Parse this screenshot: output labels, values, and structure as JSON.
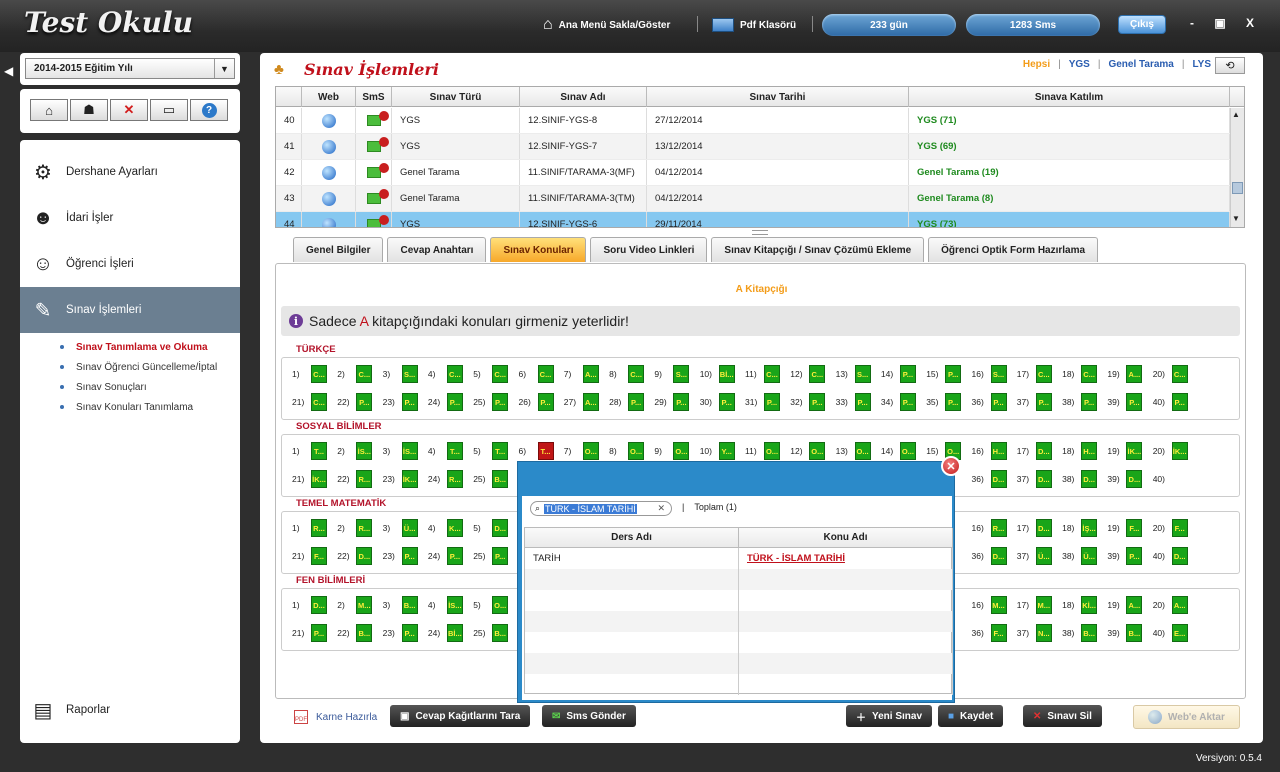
{
  "app": {
    "title": "Test Okulu"
  },
  "topbar": {
    "menu_toggle": "Ana Menü Sakla/Göster",
    "pdf": "Pdf Klasörü",
    "days": "233 gün",
    "sms": "1283 Sms",
    "logout": "Çıkış",
    "minimize": "-",
    "maximize": "▣",
    "close": "X"
  },
  "sidebar": {
    "year": "2014-2015 Eğitim Yılı",
    "menu": [
      {
        "label": "Dershane Ayarları"
      },
      {
        "label": "İdari İşler"
      },
      {
        "label": "Öğrenci İşleri"
      },
      {
        "label": "Sınav İşlemleri"
      }
    ],
    "submenu": [
      {
        "label": "Sınav Tanımlama ve Okuma"
      },
      {
        "label": "Sınav Öğrenci Güncelleme/İptal"
      },
      {
        "label": "Sınav Sonuçları"
      },
      {
        "label": "Sınav Konuları Tanımlama"
      }
    ],
    "reports": "Raporlar"
  },
  "main": {
    "title": "Sınav İşlemleri",
    "filters": [
      "Hepsi",
      "YGS",
      "Genel Tarama",
      "LYS"
    ],
    "grid": {
      "columns": [
        "Web",
        "SmS",
        "Sınav Türü",
        "Sınav Adı",
        "Sınav Tarihi",
        "Sınava Katılım"
      ],
      "rows": [
        {
          "no": "40",
          "type": "YGS",
          "name": "12.SINIF-YGS-8",
          "date": "27/12/2014",
          "participation": "YGS (71)"
        },
        {
          "no": "41",
          "type": "YGS",
          "name": "12.SINIF-YGS-7",
          "date": "13/12/2014",
          "participation": "YGS (69)"
        },
        {
          "no": "42",
          "type": "Genel Tarama",
          "name": "11.SINIF/TARAMA-3(MF)",
          "date": "04/12/2014",
          "participation": "Genel Tarama (19)"
        },
        {
          "no": "43",
          "type": "Genel Tarama",
          "name": "11.SINIF/TARAMA-3(TM)",
          "date": "04/12/2014",
          "participation": "Genel Tarama (8)"
        },
        {
          "no": "44",
          "type": "YGS",
          "name": "12.SINIF-YGS-6",
          "date": "29/11/2014",
          "participation": "YGS (73)"
        }
      ]
    },
    "tabs": [
      "Genel Bilgiler",
      "Cevap Anahtarı",
      "Sınav Konuları",
      "Soru Video Linkleri",
      "Sınav Kitapçığı / Sınav Çözümü Ekleme",
      "Öğrenci Optik Form Hazırlama"
    ],
    "booklet": "A Kitapçığı",
    "info": {
      "pre": "Sadece ",
      "letter": "A",
      "post": " kitapçığındaki konuları girmeniz yeterlidir!"
    },
    "sections": [
      {
        "title": "TÜRKÇE",
        "answers": [
          "C...",
          "C...",
          "S...",
          "C...",
          "C...",
          "C...",
          "A...",
          "C...",
          "S...",
          "Bİ...",
          "C...",
          "C...",
          "S...",
          "P...",
          "P...",
          "S...",
          "C...",
          "C...",
          "A...",
          "C...",
          "C...",
          "P...",
          "P...",
          "P...",
          "P...",
          "P...",
          "A...",
          "P...",
          "P...",
          "P...",
          "P...",
          "P...",
          "P...",
          "P...",
          "P...",
          "P...",
          "P...",
          "P...",
          "P...",
          "P..."
        ]
      },
      {
        "title": "SOSYAL BİLİMLER",
        "answers": [
          "T...",
          "İS...",
          "İS...",
          "T...",
          "T...",
          "T...",
          "O...",
          "O...",
          "O...",
          "Y...",
          "O...",
          "O...",
          "O...",
          "O...",
          "O...",
          "H...",
          "D...",
          "H...",
          "İK...",
          "İK...",
          "İK...",
          "R...",
          "İK...",
          "R...",
          "B...",
          "",
          "",
          "",
          "",
          "",
          "",
          "",
          "",
          "",
          "",
          "D...",
          "D...",
          "D...",
          "D...",
          ""
        ]
      },
      {
        "title": "TEMEL MATEMATİK",
        "answers": [
          "R...",
          "R...",
          "Ü...",
          "K...",
          "D...",
          "",
          "",
          "",
          "",
          "",
          "",
          "",
          "",
          "",
          "",
          "R...",
          "D...",
          "İŞ...",
          "F...",
          "F...",
          "F...",
          "D...",
          "P...",
          "P...",
          "P...",
          "",
          "",
          "",
          "",
          "",
          "",
          "",
          "",
          "",
          "",
          "D...",
          "Ü...",
          "Ü...",
          "P...",
          "D..."
        ]
      },
      {
        "title": "FEN BİLİMLERİ",
        "answers": [
          "D...",
          "M...",
          "B...",
          "İS...",
          "O...",
          "",
          "",
          "",
          "",
          "",
          "",
          "",
          "",
          "",
          "",
          "M...",
          "M...",
          "Kİ...",
          "A...",
          "A...",
          "P...",
          "B...",
          "P...",
          "Bİ...",
          "B...",
          "",
          "",
          "",
          "",
          "",
          "",
          "",
          "",
          "",
          "",
          "F...",
          "N...",
          "B...",
          "B...",
          "E..."
        ]
      }
    ],
    "wrong_answer": {
      "section": 1,
      "question": 6,
      "label": "T..."
    },
    "bottom": {
      "karne": "Karne Hazırla",
      "scan": "Cevap Kağıtlarını Tara",
      "sms": "Sms Gönder",
      "new": "Yeni Sınav",
      "save": "Kaydet",
      "delete": "Sınavı Sil",
      "web": "Web'e Aktar"
    }
  },
  "modal": {
    "search_value": "TÜRK - İSLAM TARİHİ",
    "total_label": "Toplam (1)",
    "columns": [
      "Ders Adı",
      "Konu Adı"
    ],
    "rows": [
      {
        "ders": "TARİH",
        "konu": "TÜRK - İSLAM TARİHİ"
      }
    ]
  },
  "version": "Versiyon: 0.5.4",
  "colors": {
    "accent": "#c0101b",
    "selected_row": "#86c8f0",
    "answer_box": "#19a519",
    "modal": "#2b8ac9"
  }
}
